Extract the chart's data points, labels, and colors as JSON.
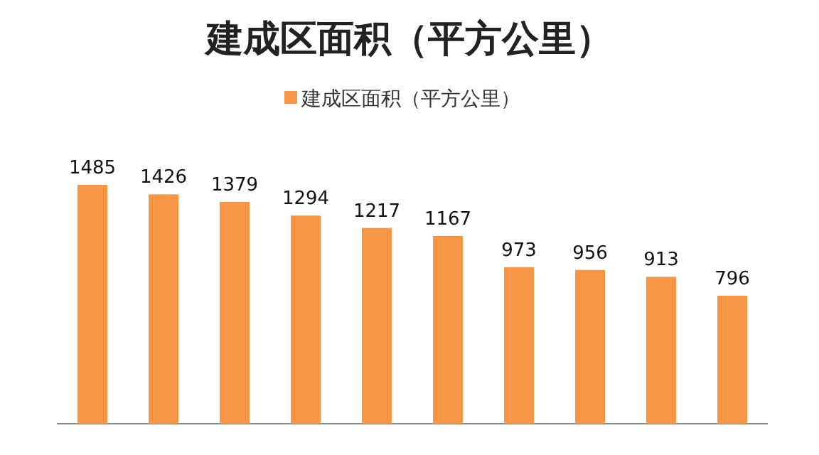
{
  "chart_data": {
    "type": "bar",
    "title": "建成区面积（平方公里）",
    "categories": [
      null,
      null,
      null,
      null,
      null,
      null,
      null,
      null,
      null,
      null
    ],
    "series": [
      {
        "name": "建成区面积（平方公里）",
        "color": "#f79646",
        "values": [
          1485,
          1426,
          1379,
          1294,
          1217,
          1167,
          973,
          956,
          913,
          796
        ]
      }
    ],
    "data_labels": true,
    "legend": "top"
  }
}
